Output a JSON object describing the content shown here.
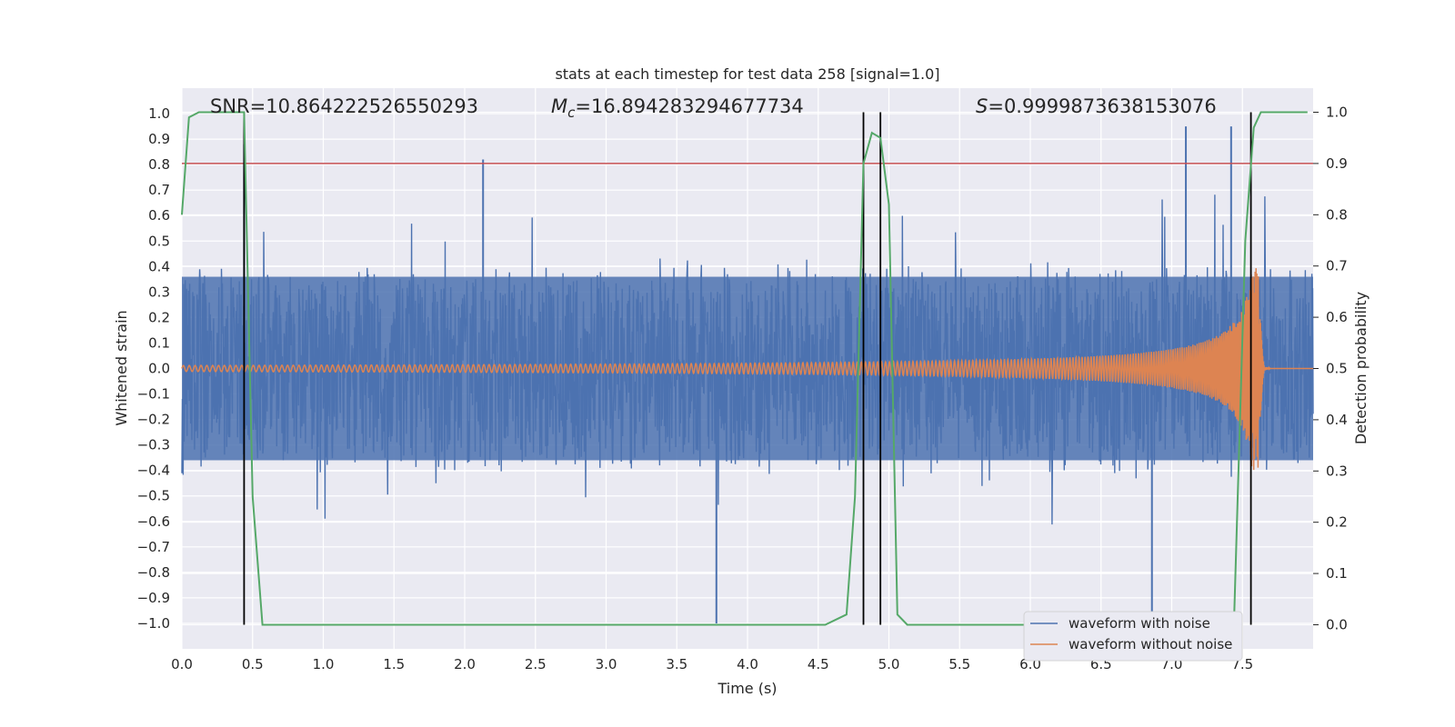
{
  "chart_data": {
    "type": "line",
    "title": "stats at each timestep for test data 258 [signal=1.0]",
    "xlabel": "Time (s)",
    "ylabel": "Whitened strain",
    "y2label": "Detection probability",
    "xlim": [
      0.0,
      8.0
    ],
    "ylim": [
      -1.1,
      1.1
    ],
    "y2lim": [
      -0.047,
      1.047
    ],
    "x_ticks": [
      "0.0",
      "0.5",
      "1.0",
      "1.5",
      "2.0",
      "2.5",
      "3.0",
      "3.5",
      "4.0",
      "4.5",
      "5.0",
      "5.5",
      "6.0",
      "6.5",
      "7.0",
      "7.5"
    ],
    "y_ticks": [
      "1.0",
      "0.9",
      "0.8",
      "0.7",
      "0.6",
      "0.5",
      "0.4",
      "0.3",
      "0.2",
      "0.1",
      "0.0",
      "−0.1",
      "−0.2",
      "−0.3",
      "−0.4",
      "−0.5",
      "−0.6",
      "−0.7",
      "−0.8",
      "−0.9",
      "−1.0"
    ],
    "y2_ticks": [
      "1.0",
      "0.9",
      "0.8",
      "0.7",
      "0.6",
      "0.5",
      "0.4",
      "0.3",
      "0.2",
      "0.1",
      "0.0"
    ],
    "annotations": {
      "snr": "SNR=10.864222526550293",
      "mc_symbol": "M",
      "mc_sub": "c",
      "mc_value": "=16.894283294677734",
      "s_symbol": "S",
      "s_value": "=0.9999873638153076"
    },
    "threshold": 0.9,
    "threshold_color": "#c44e52",
    "vlines": [
      0.44,
      4.82,
      4.94,
      7.56
    ],
    "series": [
      {
        "name": "waveform with noise",
        "color": "#4c72b0",
        "envelope": "noise amplitude ~0.35, occasional spikes to ±1.0",
        "spikes": [
          {
            "x": 0.44,
            "y": 0.88
          },
          {
            "x": 2.13,
            "y": 0.82
          },
          {
            "x": 3.78,
            "y": -1.0
          },
          {
            "x": 6.86,
            "y": -1.0
          },
          {
            "x": 7.1,
            "y": 0.95
          },
          {
            "x": 7.42,
            "y": 0.95
          }
        ]
      },
      {
        "name": "waveform without noise",
        "color": "#dd8452",
        "description": "chirp, merger near 7.62 s, peak amplitude ~0.4"
      },
      {
        "name": "Detection probability",
        "color": "#55a868",
        "x": [
          0.0,
          0.05,
          0.12,
          0.3,
          0.44,
          0.5,
          0.57,
          4.55,
          4.7,
          4.76,
          4.82,
          4.88,
          4.94,
          5.0,
          5.06,
          5.13,
          7.44,
          7.52,
          7.58,
          7.63,
          7.96
        ],
        "y": [
          0.8,
          0.99,
          1.0,
          1.0,
          1.0,
          0.25,
          0.0,
          0.0,
          0.02,
          0.25,
          0.9,
          0.96,
          0.95,
          0.82,
          0.02,
          0.0,
          0.0,
          0.75,
          0.97,
          1.0,
          1.0
        ]
      }
    ],
    "legend": {
      "position": "lower-right",
      "items": [
        "waveform with noise",
        "waveform without noise"
      ]
    },
    "black_line_color": "#000000"
  }
}
